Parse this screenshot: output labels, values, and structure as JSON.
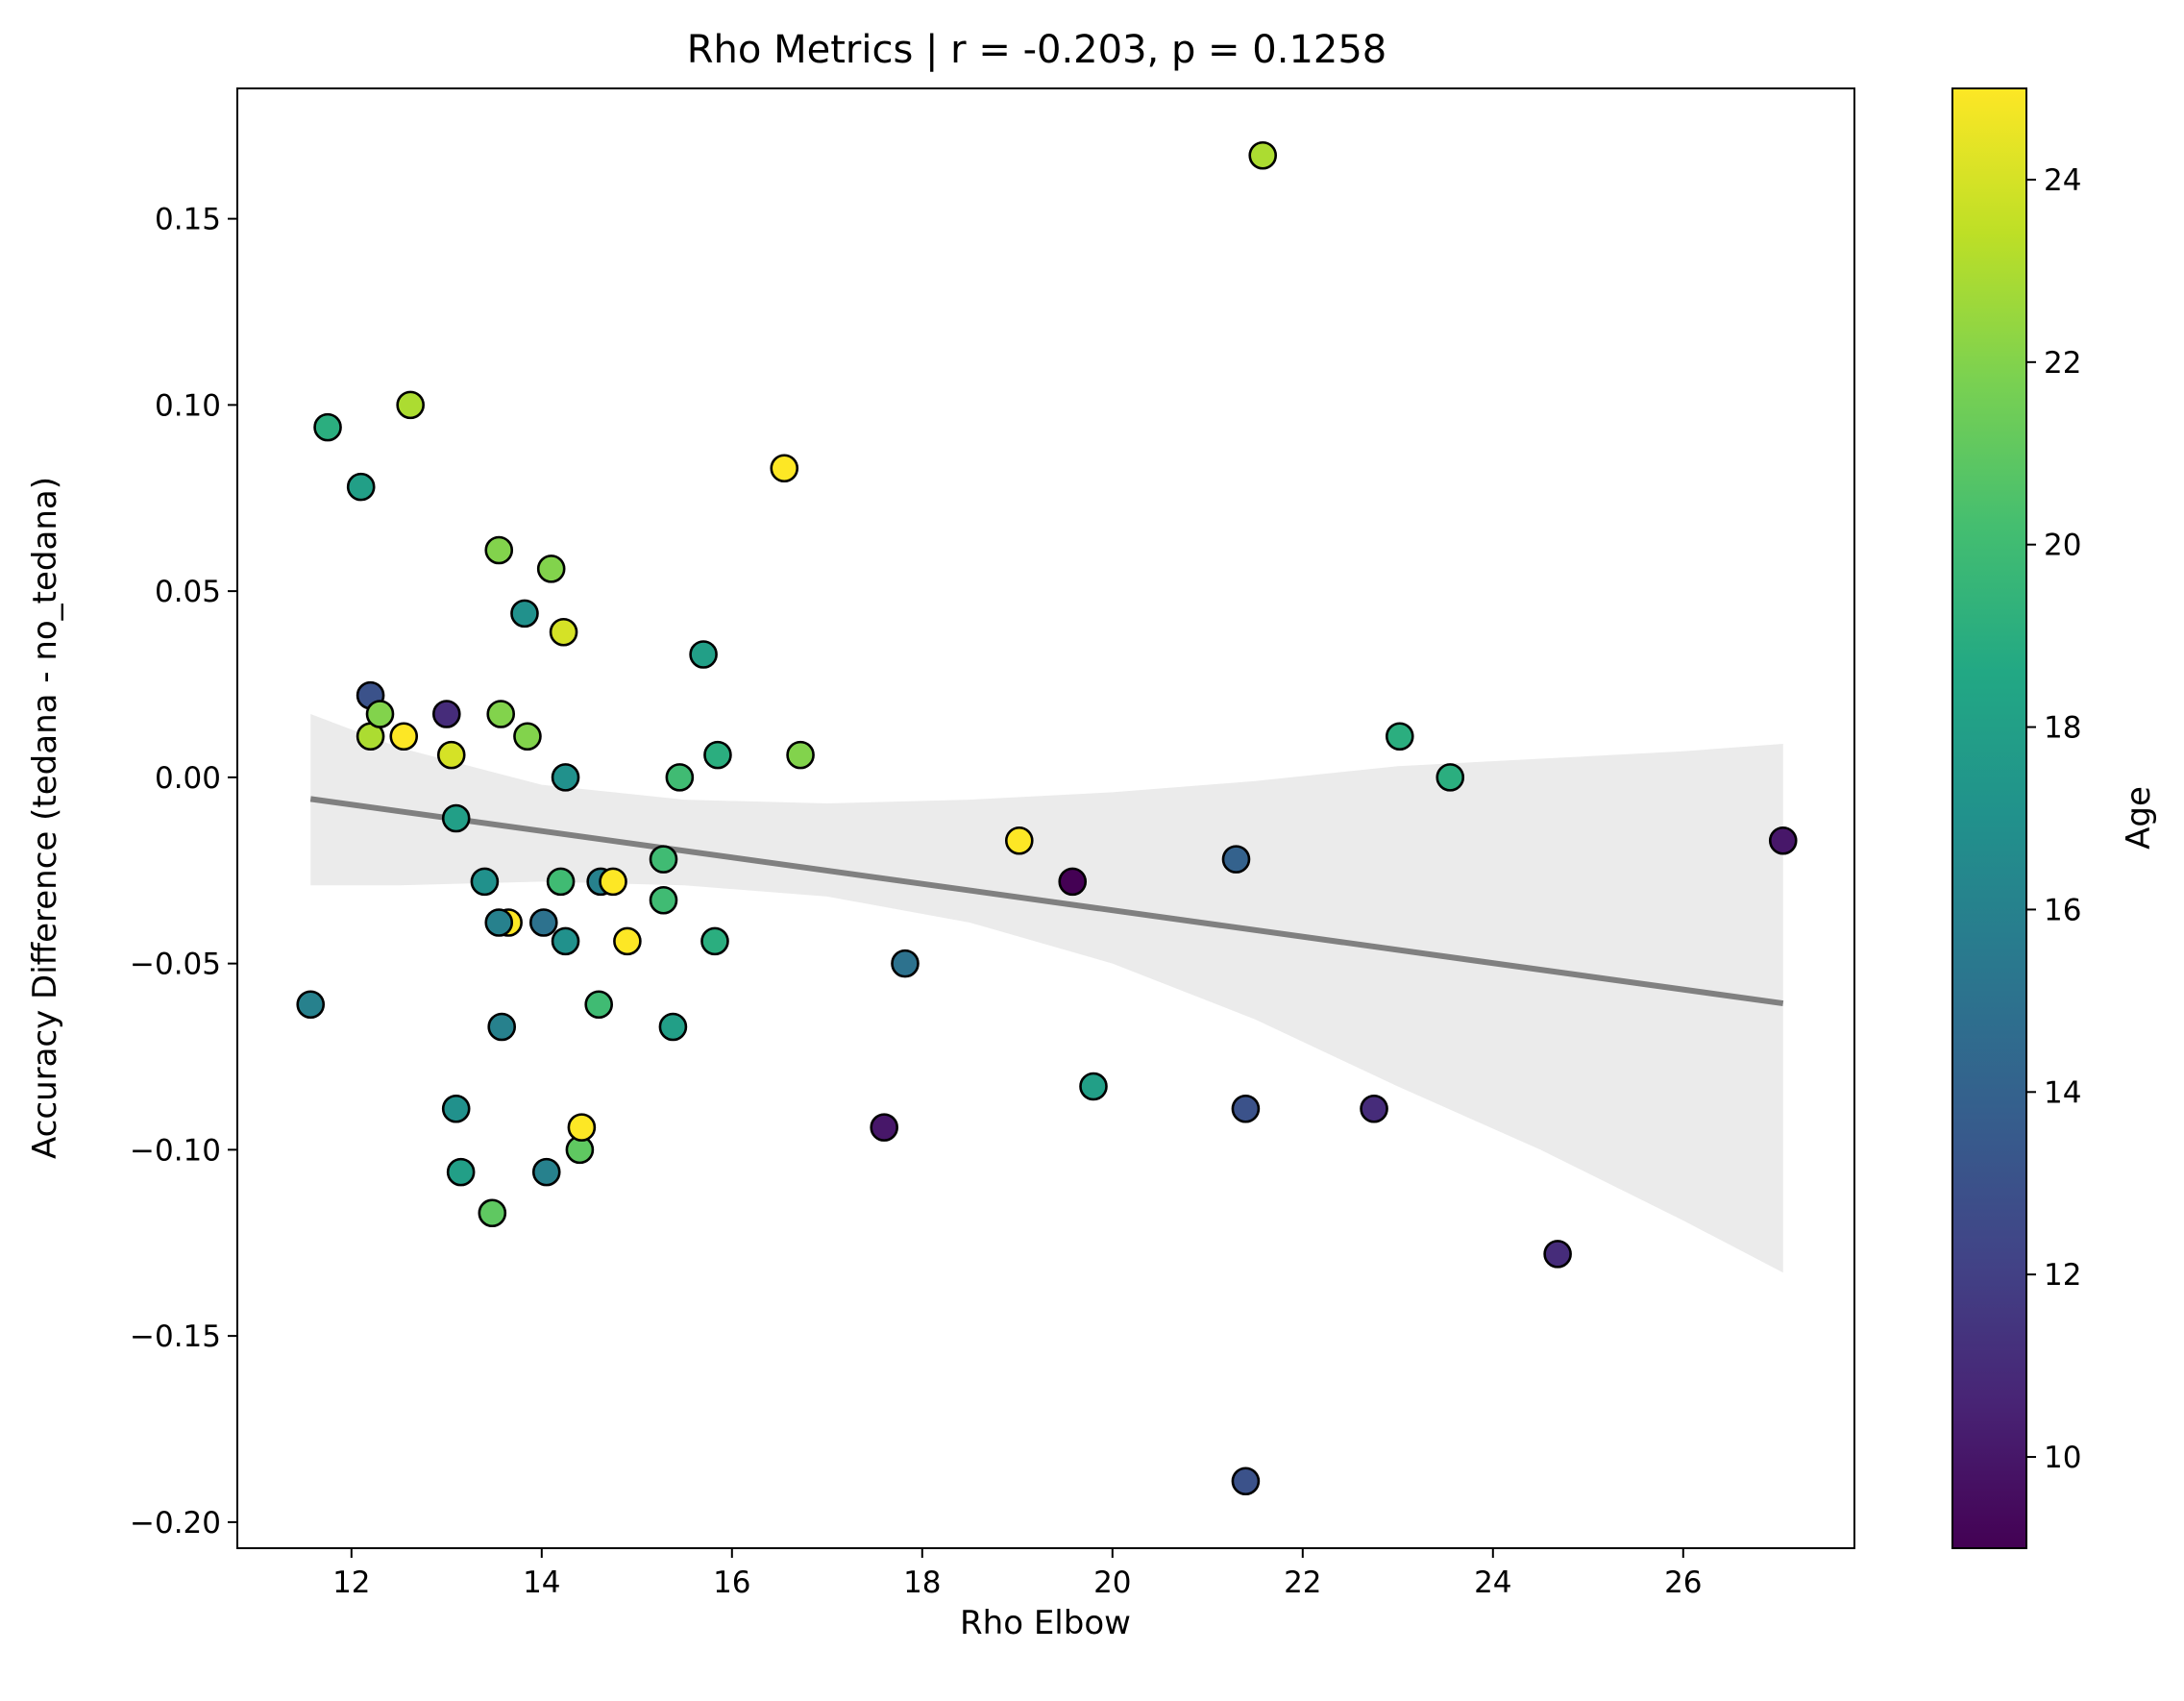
{
  "chart_data": {
    "type": "scatter",
    "title": "Rho Metrics | r = -0.203, p = 0.1258",
    "xlabel": "Rho Elbow",
    "ylabel": "Accuracy Difference (tedana - no_tedana)",
    "xlim": [
      10.8,
      27.8
    ],
    "ylim": [
      -0.207,
      0.185
    ],
    "xticks": [
      12,
      14,
      16,
      18,
      20,
      22,
      24,
      26
    ],
    "yticks": [
      -0.2,
      -0.15,
      -0.1,
      -0.05,
      0.0,
      0.05,
      0.1,
      0.15
    ],
    "ytick_labels": [
      "−0.20",
      "−0.15",
      "−0.10",
      "−0.05",
      "0.00",
      "0.05",
      "0.10",
      "0.15"
    ],
    "grid": false,
    "colorbar": {
      "label": "Age",
      "colormap": "viridis",
      "range": [
        9,
        25
      ],
      "ticks": [
        10,
        12,
        14,
        16,
        18,
        20,
        22,
        24
      ]
    },
    "regression": {
      "x": [
        11.57,
        27.05
      ],
      "y": [
        -0.0058,
        -0.0607
      ],
      "line_color": "#808080",
      "ci_color": "#ebebeb",
      "ci_lower": [
        [
          11.57,
          -0.029
        ],
        [
          12.5,
          -0.029
        ],
        [
          14,
          -0.028
        ],
        [
          15.5,
          -0.029
        ],
        [
          17,
          -0.032
        ],
        [
          18.5,
          -0.039
        ],
        [
          20,
          -0.05
        ],
        [
          21.5,
          -0.065
        ],
        [
          23,
          -0.083
        ],
        [
          24.5,
          -0.1
        ],
        [
          26,
          -0.119
        ],
        [
          27.05,
          -0.133
        ]
      ],
      "ci_upper": [
        [
          11.57,
          0.017
        ],
        [
          12.5,
          0.008
        ],
        [
          14,
          -0.002
        ],
        [
          15.5,
          -0.006
        ],
        [
          17,
          -0.007
        ],
        [
          18.5,
          -0.006
        ],
        [
          20,
          -0.004
        ],
        [
          21.5,
          -0.001
        ],
        [
          23,
          0.003
        ],
        [
          24.5,
          0.005
        ],
        [
          26,
          0.007
        ],
        [
          27.05,
          0.009
        ]
      ]
    },
    "points": [
      {
        "x": 11.57,
        "y": -0.061,
        "age": 16
      },
      {
        "x": 11.75,
        "y": 0.094,
        "age": 19
      },
      {
        "x": 12.1,
        "y": 0.078,
        "age": 18
      },
      {
        "x": 12.2,
        "y": 0.022,
        "age": 13
      },
      {
        "x": 12.2,
        "y": 0.011,
        "age": 23
      },
      {
        "x": 12.3,
        "y": 0.017,
        "age": 22
      },
      {
        "x": 12.55,
        "y": 0.011,
        "age": 25
      },
      {
        "x": 12.62,
        "y": 0.1,
        "age": 23
      },
      {
        "x": 13.0,
        "y": 0.017,
        "age": 11
      },
      {
        "x": 13.05,
        "y": 0.006,
        "age": 24
      },
      {
        "x": 13.1,
        "y": -0.011,
        "age": 18
      },
      {
        "x": 13.1,
        "y": -0.089,
        "age": 17
      },
      {
        "x": 13.15,
        "y": -0.106,
        "age": 18
      },
      {
        "x": 13.4,
        "y": -0.028,
        "age": 17
      },
      {
        "x": 13.48,
        "y": -0.117,
        "age": 21
      },
      {
        "x": 13.55,
        "y": 0.061,
        "age": 22
      },
      {
        "x": 13.57,
        "y": 0.017,
        "age": 22
      },
      {
        "x": 13.65,
        "y": -0.039,
        "age": 25
      },
      {
        "x": 13.55,
        "y": -0.039,
        "age": 16
      },
      {
        "x": 13.58,
        "y": -0.067,
        "age": 16
      },
      {
        "x": 13.82,
        "y": 0.044,
        "age": 17
      },
      {
        "x": 13.85,
        "y": 0.011,
        "age": 22
      },
      {
        "x": 14.02,
        "y": -0.039,
        "age": 15
      },
      {
        "x": 14.05,
        "y": -0.106,
        "age": 16
      },
      {
        "x": 14.1,
        "y": 0.056,
        "age": 22
      },
      {
        "x": 14.2,
        "y": -0.028,
        "age": 20
      },
      {
        "x": 14.23,
        "y": 0.039,
        "age": 24
      },
      {
        "x": 14.25,
        "y": 0.0,
        "age": 17
      },
      {
        "x": 14.25,
        "y": -0.044,
        "age": 17
      },
      {
        "x": 14.4,
        "y": -0.1,
        "age": 21
      },
      {
        "x": 14.42,
        "y": -0.094,
        "age": 25
      },
      {
        "x": 14.6,
        "y": -0.061,
        "age": 20
      },
      {
        "x": 14.62,
        "y": -0.028,
        "age": 16
      },
      {
        "x": 14.75,
        "y": -0.028,
        "age": 25
      },
      {
        "x": 14.9,
        "y": -0.044,
        "age": 25
      },
      {
        "x": 15.28,
        "y": -0.022,
        "age": 20
      },
      {
        "x": 15.28,
        "y": -0.033,
        "age": 20
      },
      {
        "x": 15.38,
        "y": -0.067,
        "age": 18
      },
      {
        "x": 15.45,
        "y": 0.0,
        "age": 20
      },
      {
        "x": 15.7,
        "y": 0.033,
        "age": 18
      },
      {
        "x": 15.82,
        "y": -0.044,
        "age": 19
      },
      {
        "x": 15.85,
        "y": 0.006,
        "age": 19
      },
      {
        "x": 16.55,
        "y": 0.083,
        "age": 25
      },
      {
        "x": 16.72,
        "y": 0.006,
        "age": 22
      },
      {
        "x": 17.6,
        "y": -0.094,
        "age": 10
      },
      {
        "x": 17.82,
        "y": -0.05,
        "age": 15
      },
      {
        "x": 19.02,
        "y": -0.017,
        "age": 25
      },
      {
        "x": 19.58,
        "y": -0.028,
        "age": 9
      },
      {
        "x": 19.8,
        "y": -0.083,
        "age": 18
      },
      {
        "x": 21.3,
        "y": -0.022,
        "age": 14
      },
      {
        "x": 21.4,
        "y": -0.089,
        "age": 13
      },
      {
        "x": 21.4,
        "y": -0.189,
        "age": 13
      },
      {
        "x": 21.58,
        "y": 0.167,
        "age": 23
      },
      {
        "x": 22.75,
        "y": -0.089,
        "age": 11
      },
      {
        "x": 23.02,
        "y": 0.011,
        "age": 19
      },
      {
        "x": 23.55,
        "y": 0.0,
        "age": 19
      },
      {
        "x": 24.68,
        "y": -0.128,
        "age": 11
      },
      {
        "x": 27.05,
        "y": -0.017,
        "age": 10
      }
    ]
  }
}
